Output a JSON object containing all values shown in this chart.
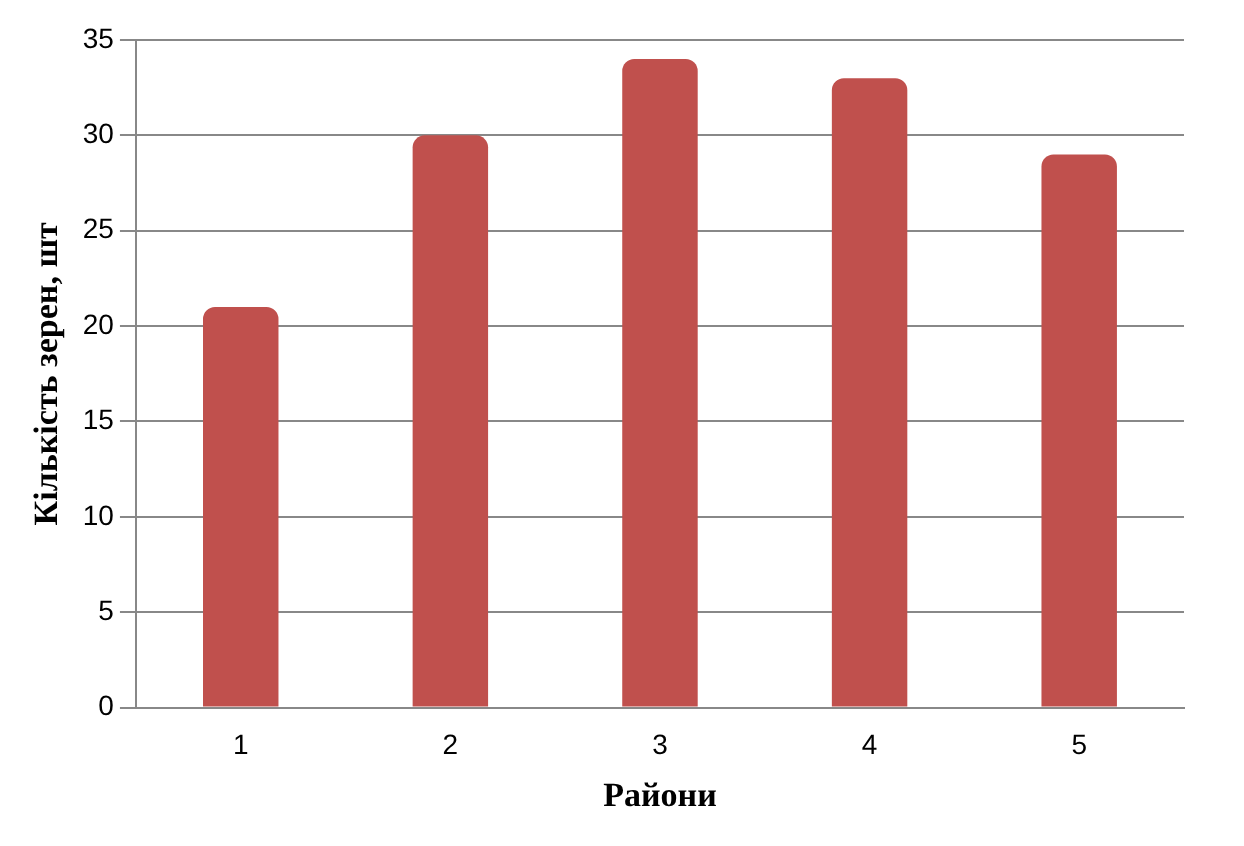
{
  "chart_data": {
    "type": "bar",
    "xlabel": "Райони",
    "ylabel": "Кількість зерен, шт",
    "categories": [
      "1",
      "2",
      "3",
      "4",
      "5"
    ],
    "values": [
      21,
      30,
      34,
      33,
      29
    ],
    "color": "#c0504d",
    "ylim": [
      0,
      35
    ],
    "yticks": [
      0,
      5,
      10,
      15,
      20,
      25,
      30,
      35
    ],
    "grid": "y",
    "legend": false
  }
}
